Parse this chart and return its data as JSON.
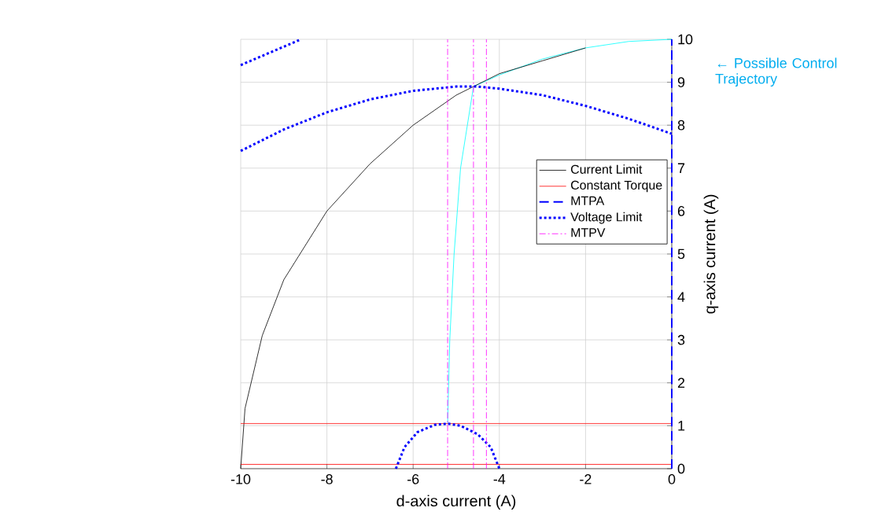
{
  "chart_data": {
    "type": "line",
    "xlabel": "d-axis current (A)",
    "ylabel": "q-axis current (A)",
    "xlim": [
      -10,
      0
    ],
    "ylim": [
      0,
      10
    ],
    "xticks": [
      -10,
      -8,
      -6,
      -4,
      -2,
      0
    ],
    "yticks": [
      0,
      1,
      2,
      3,
      4,
      5,
      6,
      7,
      8,
      9,
      10
    ],
    "grid": true,
    "legend": "right",
    "annotations": [
      "← Possible Control Trajectory"
    ],
    "series": [
      {
        "color": "#00ffff",
        "line_style": "solid",
        "x": [
          -5.2,
          -5.15,
          -5.05,
          -4.9,
          -4.6,
          -4,
          -3,
          -2,
          -1,
          0
        ],
        "values": [
          1.05,
          3,
          5,
          7,
          8.9,
          9.17,
          9.54,
          9.8,
          9.95,
          10
        ]
      },
      {
        "name": "Current Limit",
        "color": "#000000",
        "line_style": "solid",
        "x": [
          -10,
          -9.9,
          -9.5,
          -9,
          -8,
          -7,
          -6,
          -5,
          -4,
          -3,
          -2
        ],
        "values": [
          0,
          1.4,
          3.1,
          4.4,
          6.0,
          7.1,
          8.0,
          8.7,
          9.2,
          9.5,
          9.8
        ]
      },
      {
        "name": "Constant Torque",
        "color": "#ff0000",
        "line_style": "solid",
        "x": [
          -10,
          0
        ],
        "values": [
          1.05,
          1.05
        ]
      },
      {
        "color": "#ff0000",
        "line_style": "solid",
        "x": [
          -10,
          0
        ],
        "values": [
          0.1,
          0.1
        ]
      },
      {
        "name": "MTPA",
        "color": "#0000ff",
        "line_style": "dashed",
        "x": [
          0,
          0
        ],
        "values": [
          0,
          10
        ]
      },
      {
        "name": "Voltage Limit",
        "color": "#0000ff",
        "line_style": "dotted",
        "x": [
          -10,
          -9,
          -8,
          -7,
          -6,
          -5,
          -4.5,
          -4,
          -3,
          -2,
          -1,
          0
        ],
        "values": [
          7.4,
          7.9,
          8.3,
          8.6,
          8.8,
          8.9,
          8.9,
          8.85,
          8.7,
          8.45,
          8.15,
          7.8
        ]
      },
      {
        "color": "#0000ff",
        "line_style": "dotted",
        "x": [
          -10,
          -9.3,
          -8.6
        ],
        "values": [
          9.4,
          9.7,
          10.0
        ]
      },
      {
        "color": "#0000ff",
        "line_style": "dotted",
        "x": [
          -6.4,
          -6.2,
          -5.9,
          -5.5,
          -5.2,
          -4.9,
          -4.5,
          -4.2,
          -4.0
        ],
        "values": [
          0,
          0.5,
          0.85,
          1.02,
          1.05,
          1.0,
          0.8,
          0.5,
          0
        ]
      },
      {
        "name": "MTPV",
        "color": "#ff00ff",
        "line_style": "dashdot",
        "x": [
          -5.2,
          -5.2
        ],
        "values": [
          0,
          10
        ]
      },
      {
        "color": "#ff00ff",
        "line_style": "dashdot",
        "x": [
          -4.6,
          -4.6
        ],
        "values": [
          0,
          10
        ]
      },
      {
        "color": "#ff00ff",
        "line_style": "dashdot",
        "x": [
          -4.3,
          -4.3
        ],
        "values": [
          0,
          10
        ]
      }
    ]
  }
}
